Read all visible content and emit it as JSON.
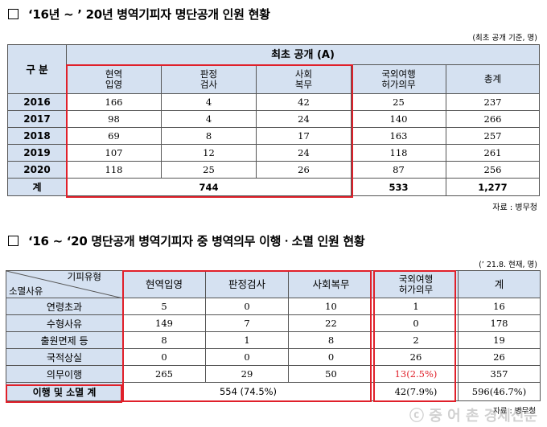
{
  "section1": {
    "title": "‘16년 ~ ’ 20년 병역기피자 명단공개 인원 현황",
    "note": "(최초 공개 기준, 명)",
    "group_header": "구 분",
    "top_header": "최초 공개 (A)",
    "columns": [
      "현역\n입영",
      "판정\n검사",
      "사회\n복무",
      "국외여행\n허가의무",
      "총계"
    ],
    "rows": [
      {
        "label": "2016",
        "cells": [
          "166",
          "4",
          "42",
          "25",
          "237"
        ]
      },
      {
        "label": "2017",
        "cells": [
          "98",
          "4",
          "24",
          "140",
          "266"
        ]
      },
      {
        "label": "2018",
        "cells": [
          "69",
          "8",
          "17",
          "163",
          "257"
        ]
      },
      {
        "label": "2019",
        "cells": [
          "107",
          "12",
          "24",
          "118",
          "261"
        ]
      },
      {
        "label": "2020",
        "cells": [
          "118",
          "25",
          "26",
          "87",
          "256"
        ]
      }
    ],
    "total": {
      "label": "계",
      "merged": "744",
      "overseas": "533",
      "sum": "1,277"
    },
    "source": "자료 : 병무청"
  },
  "section2": {
    "title": "‘16 ~ ‘20 명단공개 병역기피자 중 병역의무 이행ㆍ소멸 인원 현황",
    "note": "(’ 21.8. 현재, 명)",
    "diag_top": "기피유형",
    "diag_bottom": "소멸사유",
    "columns": [
      "현역입영",
      "판정검사",
      "사회복무",
      "국외여행\n허가의무",
      "계"
    ],
    "rows": [
      {
        "label": "연령초과",
        "cells": [
          "5",
          "0",
          "10",
          "1",
          "16"
        ]
      },
      {
        "label": "수형사유",
        "cells": [
          "149",
          "7",
          "22",
          "0",
          "178"
        ]
      },
      {
        "label": "출원면제 등",
        "cells": [
          "8",
          "1",
          "8",
          "2",
          "19"
        ]
      },
      {
        "label": "국적상실",
        "cells": [
          "0",
          "0",
          "0",
          "26",
          "26"
        ]
      },
      {
        "label": "의무이행",
        "cells": [
          "265",
          "29",
          "50",
          "13(2.5%)",
          "357"
        ]
      }
    ],
    "total": {
      "label": "이행 및 소멸 계",
      "merged": "554 (74.5%)",
      "overseas": "42(7.9%)",
      "sum": "596(46.7%)"
    },
    "source": "자료 : 병무청",
    "watermark": "ⓒ 중 어 촌 경제신문",
    "accent": "#e0202a",
    "header_bg": "#d5e1f1"
  }
}
